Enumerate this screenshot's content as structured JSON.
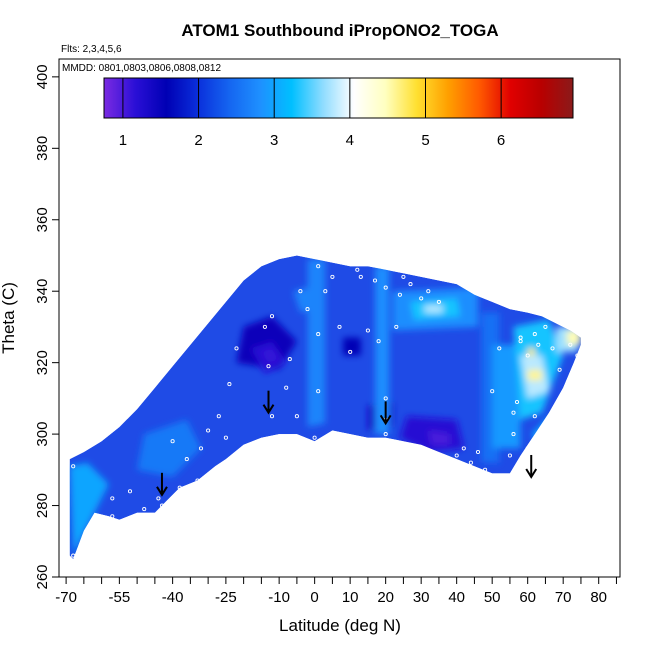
{
  "chart_data": {
    "type": "heatmap",
    "title": "ATOM1 Southbound iPropONO2_TOGA",
    "annotations": [
      "Flts: 2,3,4,5,6",
      "MMDD: 0801,0803,0806,0808,0812"
    ],
    "xlabel": "Latitude (deg N)",
    "ylabel": "Theta (C)",
    "xlim": [
      -72,
      86
    ],
    "ylim": [
      260,
      405
    ],
    "x_ticks": [
      -70,
      -55,
      -40,
      -25,
      -10,
      0,
      10,
      20,
      30,
      40,
      50,
      60,
      70,
      80
    ],
    "x_tick_labels": [
      "-70",
      "-55",
      "-40",
      "-25",
      "-10",
      "0",
      "10",
      "20",
      "30",
      "40",
      "50",
      "60",
      "70",
      "80"
    ],
    "x_minor_ticks": [
      -65,
      -60,
      -50,
      -45,
      -35,
      -30,
      -20,
      -15,
      -5,
      5,
      15,
      25,
      35,
      45,
      55,
      65,
      75,
      85
    ],
    "y_ticks": [
      260,
      280,
      300,
      320,
      340,
      360,
      380,
      400
    ],
    "y_tick_labels": [
      "260",
      "280",
      "300",
      "320",
      "340",
      "360",
      "380",
      "400"
    ],
    "colorbar": {
      "range": [
        0.75,
        6.95
      ],
      "ticks": [
        1,
        2,
        3,
        4,
        5,
        6
      ],
      "tick_labels": [
        "1",
        "2",
        "3",
        "4",
        "5",
        "6"
      ],
      "colors": [
        "#7b2be2",
        "#2a0fd6",
        "#0000b4",
        "#0a2fdb",
        "#1565f0",
        "#1e90ff",
        "#00bfff",
        "#8fdcff",
        "#ffffff",
        "#ffffc0",
        "#ffe030",
        "#ffa000",
        "#ff5a00",
        "#e00000",
        "#b80000",
        "#8b1a1a"
      ]
    },
    "field_outline": [
      [
        -68,
        265
      ],
      [
        -65,
        273
      ],
      [
        -62,
        278
      ],
      [
        -58,
        277
      ],
      [
        -55,
        276
      ],
      [
        -50,
        278
      ],
      [
        -45,
        278
      ],
      [
        -42,
        281
      ],
      [
        -38,
        285
      ],
      [
        -33,
        287
      ],
      [
        -28,
        291
      ],
      [
        -25,
        293
      ],
      [
        -20,
        297
      ],
      [
        -15,
        299
      ],
      [
        -10,
        300
      ],
      [
        -5,
        300
      ],
      [
        0,
        298
      ],
      [
        5,
        301
      ],
      [
        10,
        300
      ],
      [
        15,
        299
      ],
      [
        20,
        299
      ],
      [
        25,
        298
      ],
      [
        30,
        297
      ],
      [
        35,
        295
      ],
      [
        40,
        293
      ],
      [
        45,
        291
      ],
      [
        50,
        289
      ],
      [
        55,
        289
      ],
      [
        58,
        294
      ],
      [
        62,
        300
      ],
      [
        66,
        306
      ],
      [
        70,
        313
      ],
      [
        73,
        320
      ],
      [
        75,
        325
      ],
      [
        75,
        327
      ],
      [
        72,
        329
      ],
      [
        68,
        331
      ],
      [
        64,
        333
      ],
      [
        60,
        334
      ],
      [
        55,
        335
      ],
      [
        50,
        337
      ],
      [
        45,
        339
      ],
      [
        40,
        342
      ],
      [
        35,
        343
      ],
      [
        30,
        344
      ],
      [
        25,
        345
      ],
      [
        20,
        346
      ],
      [
        15,
        347
      ],
      [
        10,
        347
      ],
      [
        5,
        348
      ],
      [
        0,
        349
      ],
      [
        -5,
        350
      ],
      [
        -10,
        349
      ],
      [
        -15,
        347
      ],
      [
        -20,
        343
      ],
      [
        -25,
        337
      ],
      [
        -30,
        331
      ],
      [
        -35,
        325
      ],
      [
        -40,
        319
      ],
      [
        -45,
        313
      ],
      [
        -50,
        307
      ],
      [
        -55,
        302
      ],
      [
        -60,
        298
      ],
      [
        -65,
        295
      ],
      [
        -69,
        293
      ],
      [
        -69,
        266
      ]
    ],
    "field_patches": [
      {
        "value": 3.0,
        "points": [
          [
            -68,
            266
          ],
          [
            -62,
            278
          ],
          [
            -58,
            286
          ],
          [
            -64,
            292
          ],
          [
            -69,
            291
          ]
        ]
      },
      {
        "value": 2.6,
        "points": [
          [
            -48,
            300
          ],
          [
            -36,
            304
          ],
          [
            -32,
            296
          ],
          [
            -40,
            288
          ],
          [
            -50,
            290
          ]
        ]
      },
      {
        "value": 1.5,
        "points": [
          [
            -20,
            330
          ],
          [
            -12,
            333
          ],
          [
            -5,
            326
          ],
          [
            -10,
            318
          ],
          [
            -22,
            320
          ]
        ]
      },
      {
        "value": 1.2,
        "points": [
          [
            -18,
            324
          ],
          [
            -12,
            326
          ],
          [
            -8,
            320
          ],
          [
            -14,
            317
          ]
        ]
      },
      {
        "value": 1.1,
        "points": [
          [
            -15,
            323
          ],
          [
            -12,
            324
          ],
          [
            -10,
            321
          ],
          [
            -13,
            320
          ]
        ]
      },
      {
        "value": 2.7,
        "points": [
          [
            -2,
            349
          ],
          [
            3,
            349
          ],
          [
            3,
            303
          ],
          [
            -2,
            302
          ]
        ]
      },
      {
        "value": 2.7,
        "points": [
          [
            -6,
            340
          ],
          [
            -2,
            341
          ],
          [
            0,
            335
          ],
          [
            -4,
            334
          ]
        ]
      },
      {
        "value": 1.6,
        "points": [
          [
            8,
            327
          ],
          [
            13,
            327
          ],
          [
            13,
            322
          ],
          [
            8,
            322
          ]
        ]
      },
      {
        "value": 1.4,
        "points": [
          [
            15,
            308
          ],
          [
            22,
            309
          ],
          [
            22,
            302
          ],
          [
            15,
            301
          ]
        ]
      },
      {
        "value": 2.8,
        "points": [
          [
            17,
            347
          ],
          [
            21,
            347
          ],
          [
            21,
            300
          ],
          [
            17,
            300
          ]
        ]
      },
      {
        "value": 2.8,
        "points": [
          [
            22,
            340
          ],
          [
            46,
            341
          ],
          [
            46,
            330
          ],
          [
            22,
            329
          ]
        ]
      },
      {
        "value": 3.3,
        "points": [
          [
            27,
            337
          ],
          [
            40,
            338
          ],
          [
            41,
            333
          ],
          [
            28,
            332
          ]
        ]
      },
      {
        "value": 3.8,
        "points": [
          [
            31,
            336
          ],
          [
            36,
            336
          ],
          [
            36,
            334
          ],
          [
            31,
            334
          ]
        ]
      },
      {
        "value": 1.2,
        "points": [
          [
            26,
            305
          ],
          [
            40,
            304
          ],
          [
            42,
            296
          ],
          [
            32,
            295
          ],
          [
            24,
            299
          ]
        ]
      },
      {
        "value": 1.0,
        "points": [
          [
            32,
            301
          ],
          [
            38,
            300
          ],
          [
            38,
            297
          ],
          [
            33,
            297
          ]
        ]
      },
      {
        "value": 2.5,
        "points": [
          [
            47,
            334
          ],
          [
            52,
            334
          ],
          [
            52,
            292
          ],
          [
            47,
            292
          ]
        ]
      },
      {
        "value": 2.9,
        "points": [
          [
            50,
            325
          ],
          [
            58,
            325
          ],
          [
            58,
            296
          ],
          [
            50,
            296
          ]
        ]
      },
      {
        "value": 3.3,
        "points": [
          [
            56,
            330
          ],
          [
            66,
            332
          ],
          [
            70,
            322
          ],
          [
            64,
            306
          ],
          [
            58,
            304
          ]
        ]
      },
      {
        "value": 3.8,
        "points": [
          [
            58,
            322
          ],
          [
            64,
            322
          ],
          [
            66,
            312
          ],
          [
            60,
            310
          ]
        ]
      },
      {
        "value": 4.6,
        "points": [
          [
            60,
            318
          ],
          [
            64,
            318
          ],
          [
            64,
            315
          ],
          [
            60,
            315
          ]
        ]
      },
      {
        "value": 3.7,
        "points": [
          [
            68,
            330
          ],
          [
            74,
            330
          ],
          [
            74,
            323
          ],
          [
            68,
            323
          ]
        ]
      },
      {
        "value": 4.5,
        "points": [
          [
            71,
            329
          ],
          [
            75,
            329
          ],
          [
            75,
            325
          ],
          [
            71,
            325
          ]
        ]
      },
      {
        "value": 4.7,
        "points": [
          [
            60,
            324
          ],
          [
            62,
            324
          ],
          [
            62,
            322
          ],
          [
            60,
            322
          ]
        ]
      },
      {
        "value": 3.0,
        "points": [
          [
            61,
            300
          ],
          [
            66,
            305
          ],
          [
            68,
            300
          ],
          [
            64,
            296
          ]
        ]
      }
    ],
    "points": [
      [
        -68,
        291
      ],
      [
        -68,
        266
      ],
      [
        -57,
        282
      ],
      [
        -57,
        277
      ],
      [
        -52,
        284
      ],
      [
        -48,
        279
      ],
      [
        -44,
        282
      ],
      [
        -43,
        280
      ],
      [
        -40,
        298
      ],
      [
        -38,
        285
      ],
      [
        -38,
        284
      ],
      [
        -36,
        293
      ],
      [
        -33,
        287
      ],
      [
        -32,
        296
      ],
      [
        -30,
        301
      ],
      [
        -28,
        286
      ],
      [
        -27,
        305
      ],
      [
        -25,
        299
      ],
      [
        -24,
        314
      ],
      [
        -22,
        324
      ],
      [
        -14,
        330
      ],
      [
        -13,
        319
      ],
      [
        -12,
        333
      ],
      [
        -12,
        305
      ],
      [
        -8,
        313
      ],
      [
        -7,
        321
      ],
      [
        -5,
        305
      ],
      [
        -4,
        340
      ],
      [
        -2,
        335
      ],
      [
        -1,
        350
      ],
      [
        1,
        347
      ],
      [
        1,
        328
      ],
      [
        1,
        312
      ],
      [
        0,
        299
      ],
      [
        3,
        340
      ],
      [
        5,
        344
      ],
      [
        7,
        330
      ],
      [
        10,
        323
      ],
      [
        12,
        346
      ],
      [
        13,
        344
      ],
      [
        15,
        329
      ],
      [
        17,
        343
      ],
      [
        18,
        326
      ],
      [
        20,
        341
      ],
      [
        20,
        310
      ],
      [
        20,
        304
      ],
      [
        20,
        300
      ],
      [
        23,
        330
      ],
      [
        24,
        339
      ],
      [
        25,
        344
      ],
      [
        27,
        342
      ],
      [
        30,
        338
      ],
      [
        32,
        340
      ],
      [
        35,
        337
      ],
      [
        40,
        294
      ],
      [
        42,
        296
      ],
      [
        44,
        292
      ],
      [
        46,
        295
      ],
      [
        48,
        290
      ],
      [
        50,
        312
      ],
      [
        52,
        324
      ],
      [
        55,
        294
      ],
      [
        56,
        300
      ],
      [
        57,
        309
      ],
      [
        58,
        327
      ],
      [
        58,
        326
      ],
      [
        60,
        322
      ],
      [
        62,
        328
      ],
      [
        63,
        325
      ],
      [
        65,
        330
      ],
      [
        67,
        324
      ],
      [
        69,
        318
      ],
      [
        70,
        307
      ],
      [
        72,
        325
      ],
      [
        74,
        322
      ],
      [
        76,
        327
      ],
      [
        77,
        324
      ],
      [
        56,
        306
      ],
      [
        60,
        296
      ],
      [
        62,
        305
      ],
      [
        66,
        303
      ]
    ],
    "arrows": [
      [
        -43,
        283
      ],
      [
        -13,
        306
      ],
      [
        20,
        303
      ],
      [
        61,
        288
      ]
    ]
  }
}
